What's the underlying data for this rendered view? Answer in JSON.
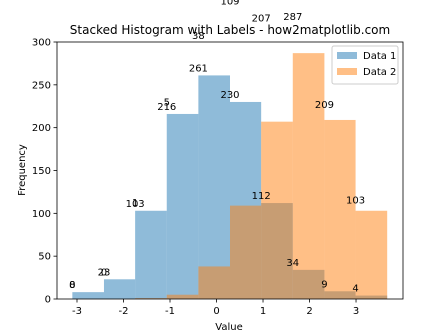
{
  "chart_data": {
    "type": "histogram",
    "title": "Stacked Histogram with Labels - how2matplotlib.com",
    "xlabel": "Value",
    "ylabel": "Frequency",
    "bins": [
      -3.1,
      -2.42,
      -1.75,
      -1.07,
      -0.39,
      0.29,
      0.96,
      1.64,
      2.32,
      2.99,
      3.67
    ],
    "series": [
      {
        "name": "Data 1",
        "color": "#1f77b4",
        "values": [
          8,
          23,
          103,
          216,
          261,
          230,
          112,
          34,
          9,
          4
        ]
      },
      {
        "name": "Data 2",
        "color": "#ff7f0e",
        "values": [
          0,
          0,
          1,
          5,
          38,
          109,
          207,
          287,
          209,
          103
        ]
      }
    ],
    "xlim": [
      -3.43,
      4.01
    ],
    "ylim": [
      0,
      300
    ],
    "xticks": [
      -3,
      -2,
      -1,
      0,
      1,
      2,
      3
    ],
    "yticks": [
      0,
      50,
      100,
      150,
      200,
      250,
      300
    ],
    "legend": "upper right"
  }
}
